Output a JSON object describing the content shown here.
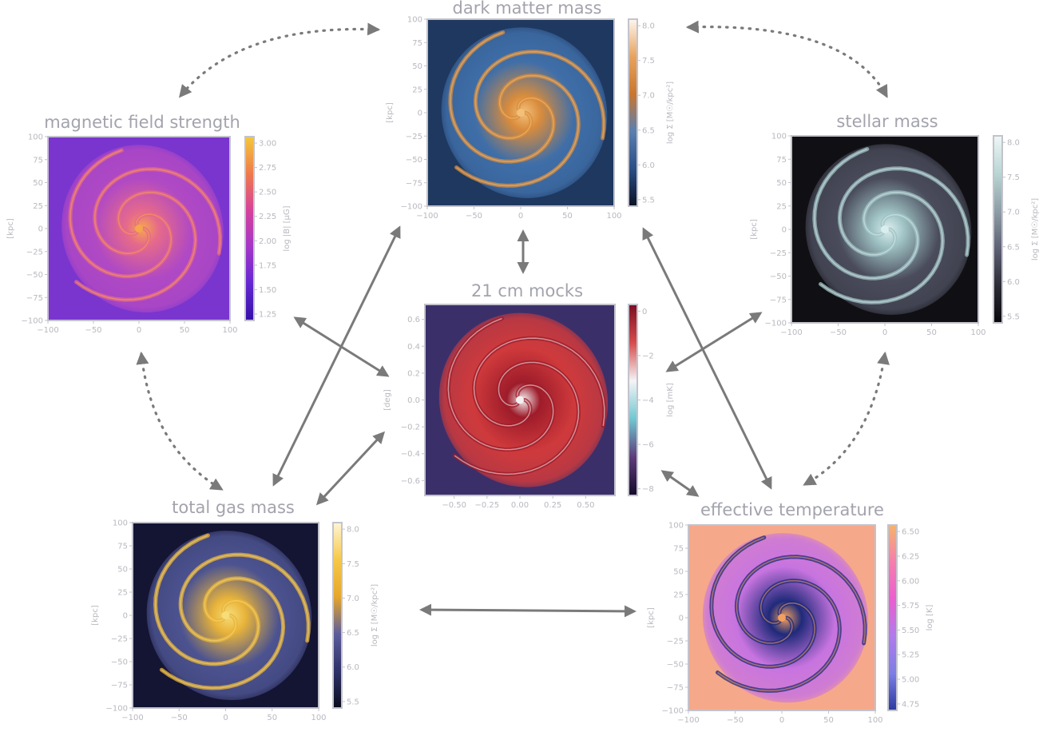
{
  "panels": [
    {
      "id": "dm",
      "title": "dark matter mass",
      "ylabel": "[kpc]",
      "xticks": [
        "−100",
        "−50",
        "0",
        "50",
        "100"
      ],
      "yticks": [
        "100",
        "75",
        "50",
        "25",
        "0",
        "−25",
        "−50",
        "−75",
        "−100"
      ],
      "colorbar": {
        "label": "log Σ [M☉/kpc²]",
        "ticks": [
          "8.0",
          "7.5",
          "7.0",
          "6.5",
          "6.0",
          "5.5"
        ],
        "colors": [
          "#fdf6ee",
          "#e7a35e",
          "#c9762f",
          "#5a7fb0",
          "#2b4f86",
          "#0b1225"
        ]
      },
      "map": {
        "bg": "#1e3860",
        "body": "#3f6ea8",
        "arm": "#d98c3c",
        "core": "#f3c07a"
      }
    },
    {
      "id": "bfield",
      "title": "magnetic field strength",
      "ylabel": "[kpc]",
      "xticks": [
        "−100",
        "−50",
        "0",
        "50",
        "100"
      ],
      "yticks": [
        "100",
        "75",
        "50",
        "25",
        "0",
        "−25",
        "−50",
        "−75",
        "−100"
      ],
      "colorbar": {
        "label": "log |B| [μG]",
        "ticks": [
          "3.00",
          "2.75",
          "2.50",
          "2.25",
          "2.00",
          "1.75",
          "1.50",
          "1.25"
        ],
        "colors": [
          "#f4c83a",
          "#ef7b4a",
          "#d6429b",
          "#a436c8",
          "#6427d2",
          "#3511a8"
        ]
      },
      "map": {
        "bg": "#7a35cf",
        "body": "#b049c4",
        "arm": "#e66a8a",
        "core": "#f6a64e"
      }
    },
    {
      "id": "stellar",
      "title": "stellar mass",
      "ylabel": "[kpc]",
      "xticks": [
        "−100",
        "−50",
        "0",
        "50",
        "100"
      ],
      "yticks": [
        "100",
        "75",
        "50",
        "25",
        "0",
        "−25",
        "−50",
        "−75",
        "−100"
      ],
      "colorbar": {
        "label": "log Σ [M☉/kpc²]",
        "ticks": [
          "8.0",
          "7.5",
          "7.0",
          "6.5",
          "6.0",
          "5.5"
        ],
        "colors": [
          "#eef7f6",
          "#b9d6d4",
          "#8e9ea6",
          "#5e6275",
          "#2c2c36",
          "#08080b"
        ]
      },
      "map": {
        "bg": "#101014",
        "body": "#4a4c5c",
        "arm": "#9fc2c4",
        "core": "#dbeeee"
      }
    },
    {
      "id": "hi",
      "title": "21 cm mocks",
      "ylabel": "[deg]",
      "xticks": [
        "−0.50",
        "−0.25",
        "0.00",
        "0.25",
        "0.50"
      ],
      "yticks": [
        "0.6",
        "0.4",
        "0.2",
        "0.0",
        "−0.2",
        "−0.4",
        "−0.6"
      ],
      "colorbar": {
        "label": "log [mK]",
        "ticks": [
          "0",
          "−2",
          "−4",
          "−6",
          "−8"
        ],
        "colors": [
          "#7c0d22",
          "#d64b4b",
          "#f4f4f6",
          "#6fc7d1",
          "#5e3b7a",
          "#150b2a"
        ]
      },
      "map": {
        "bg": "#3b2f6a",
        "body": "#cf3a3c",
        "arm": "#9e1c2a",
        "core": "#f3f0f2"
      }
    },
    {
      "id": "gas",
      "title": "total gas mass",
      "ylabel": "[kpc]",
      "xticks": [
        "−100",
        "−50",
        "0",
        "50",
        "100"
      ],
      "yticks": [
        "100",
        "75",
        "50",
        "25",
        "0",
        "−25",
        "−50",
        "−75",
        "−100"
      ],
      "colorbar": {
        "label": "log Σ [M☉/kpc²]",
        "ticks": [
          "8.0",
          "7.5",
          "7.0",
          "6.5",
          "6.0",
          "5.5"
        ],
        "colors": [
          "#fff5d6",
          "#f6c848",
          "#e6a62b",
          "#5c5d9c",
          "#2e3268",
          "#0b0c1d"
        ]
      },
      "map": {
        "bg": "#141433",
        "body": "#4c5390",
        "arm": "#e9b43a",
        "core": "#f6dd7a"
      }
    },
    {
      "id": "temp",
      "title": "effective temperature",
      "ylabel": "[kpc]",
      "xticks": [
        "−100",
        "−50",
        "0",
        "50",
        "100"
      ],
      "yticks": [
        "100",
        "75",
        "50",
        "25",
        "0",
        "−25",
        "−50",
        "−75",
        "−100"
      ],
      "colorbar": {
        "label": "log [K]",
        "ticks": [
          "6.50",
          "6.25",
          "6.00",
          "5.75",
          "5.50",
          "5.25",
          "5.00",
          "4.75"
        ],
        "colors": [
          "#f7b36a",
          "#f57eae",
          "#ea5fd0",
          "#b07bec",
          "#7d7fe6",
          "#2a3aa0"
        ]
      },
      "map": {
        "bg": "#f6a88a",
        "body": "#c874e0",
        "arm": "#1f2a7a",
        "core": "#f3a05e"
      }
    }
  ],
  "colors": {
    "arrow": "#7a7a7a"
  }
}
